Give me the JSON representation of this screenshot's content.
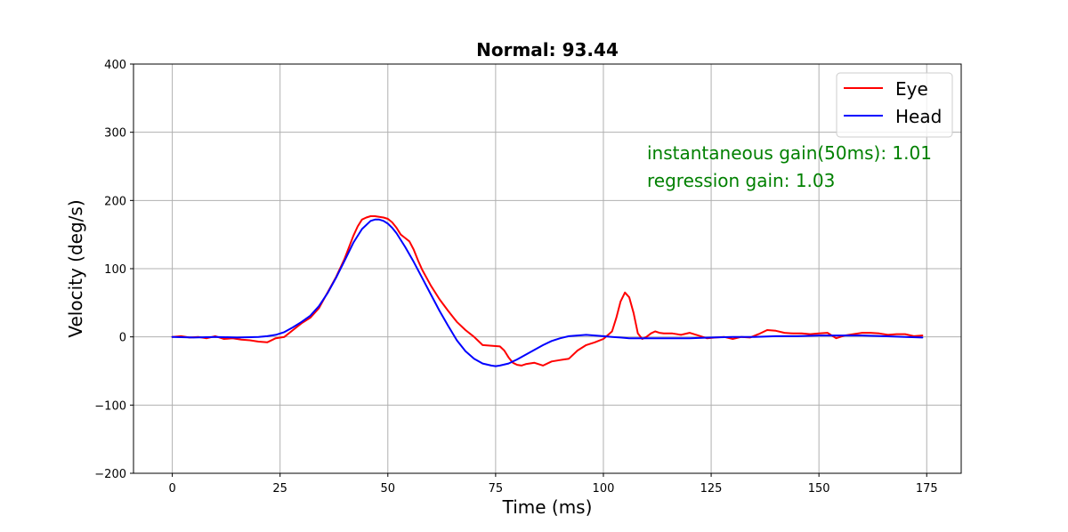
{
  "chart_data": {
    "type": "line",
    "title": "Normal: 93.44",
    "xlabel": "Time (ms)",
    "ylabel": "Velocity (deg/s)",
    "xlim": [
      -9,
      183
    ],
    "ylim": [
      -200,
      400
    ],
    "xticks": [
      0,
      25,
      50,
      75,
      100,
      125,
      150,
      175
    ],
    "yticks": [
      -200,
      -100,
      0,
      100,
      200,
      300,
      400
    ],
    "grid": true,
    "legend_position": "top-right",
    "annotations": [
      {
        "text": "instantaneous gain(50ms): 1.01",
        "x": 110,
        "y": 253
      },
      {
        "text": "regression gain: 1.03",
        "x": 110,
        "y": 213
      }
    ],
    "series": [
      {
        "name": "Eye",
        "color": "#ff0000",
        "x": [
          0,
          2,
          4,
          6,
          8,
          10,
          12,
          14,
          16,
          18,
          20,
          22,
          24,
          26,
          28,
          30,
          32,
          34,
          36,
          38,
          40,
          42,
          43,
          44,
          45,
          46,
          47,
          48,
          49,
          50,
          51,
          52,
          53,
          54,
          55,
          56,
          57,
          58,
          60,
          62,
          64,
          66,
          68,
          70,
          72,
          74,
          76,
          77,
          78,
          79,
          80,
          81,
          82,
          84,
          86,
          88,
          90,
          92,
          94,
          96,
          98,
          100,
          102,
          103,
          104,
          105,
          106,
          107,
          108,
          109,
          110,
          111,
          112,
          113,
          114,
          116,
          118,
          120,
          122,
          124,
          126,
          128,
          130,
          132,
          134,
          136,
          138,
          140,
          142,
          144,
          146,
          148,
          150,
          152,
          154,
          156,
          158,
          160,
          162,
          164,
          166,
          168,
          170,
          172,
          174
        ],
        "values": [
          0,
          1,
          -1,
          0,
          -2,
          1,
          -3,
          -2,
          -4,
          -5,
          -7,
          -8,
          -2,
          0,
          10,
          20,
          28,
          42,
          65,
          88,
          115,
          148,
          162,
          172,
          175,
          177,
          177,
          176,
          175,
          173,
          168,
          160,
          150,
          145,
          140,
          128,
          112,
          98,
          75,
          55,
          38,
          22,
          10,
          0,
          -12,
          -13,
          -14,
          -20,
          -30,
          -38,
          -41,
          -42,
          -40,
          -38,
          -42,
          -36,
          -34,
          -32,
          -20,
          -12,
          -8,
          -3,
          8,
          28,
          52,
          65,
          58,
          35,
          5,
          -3,
          0,
          5,
          8,
          6,
          5,
          5,
          3,
          6,
          2,
          -2,
          -1,
          0,
          -3,
          0,
          -1,
          4,
          10,
          9,
          6,
          5,
          5,
          4,
          5,
          6,
          -2,
          2,
          4,
          6,
          6,
          5,
          3,
          4,
          4,
          1,
          2
        ]
      },
      {
        "name": "Head",
        "color": "#0000ff",
        "x": [
          0,
          5,
          10,
          15,
          20,
          22,
          24,
          26,
          28,
          30,
          32,
          34,
          36,
          38,
          40,
          42,
          44,
          46,
          47,
          48,
          49,
          50,
          51,
          52,
          54,
          56,
          58,
          60,
          62,
          64,
          66,
          68,
          70,
          72,
          74,
          75,
          76,
          78,
          80,
          82,
          84,
          86,
          88,
          90,
          92,
          94,
          96,
          98,
          100,
          102,
          104,
          106,
          108,
          110,
          115,
          120,
          125,
          130,
          135,
          140,
          145,
          150,
          155,
          160,
          165,
          170,
          174
        ],
        "values": [
          0,
          -1,
          0,
          -1,
          0,
          1,
          3,
          7,
          14,
          22,
          31,
          45,
          64,
          87,
          112,
          138,
          158,
          170,
          172,
          172,
          170,
          166,
          160,
          152,
          132,
          110,
          86,
          62,
          38,
          16,
          -5,
          -21,
          -32,
          -39,
          -42,
          -43,
          -42,
          -39,
          -33,
          -26,
          -19,
          -12,
          -6,
          -2,
          1,
          2,
          3,
          2,
          1,
          0,
          -1,
          -2,
          -2,
          -2,
          -2,
          -2,
          -1,
          0,
          0,
          1,
          1,
          2,
          2,
          2,
          1,
          0,
          -1
        ]
      }
    ]
  }
}
